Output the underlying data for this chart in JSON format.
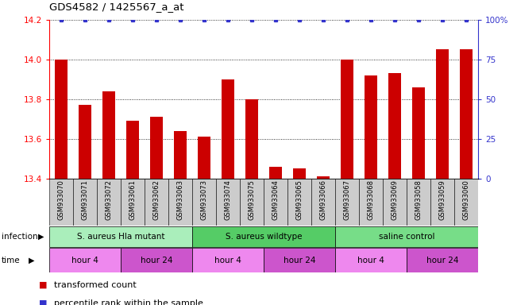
{
  "title": "GDS4582 / 1425567_a_at",
  "samples": [
    "GSM933070",
    "GSM933071",
    "GSM933072",
    "GSM933061",
    "GSM933062",
    "GSM933063",
    "GSM933073",
    "GSM933074",
    "GSM933075",
    "GSM933064",
    "GSM933065",
    "GSM933066",
    "GSM933067",
    "GSM933068",
    "GSM933069",
    "GSM933058",
    "GSM933059",
    "GSM933060"
  ],
  "bar_values": [
    14.0,
    13.77,
    13.84,
    13.69,
    13.71,
    13.64,
    13.61,
    13.9,
    13.8,
    13.46,
    13.45,
    13.41,
    14.0,
    13.92,
    13.93,
    13.86,
    14.05,
    14.05
  ],
  "percentile_values": [
    100,
    100,
    100,
    100,
    100,
    100,
    100,
    100,
    100,
    100,
    100,
    100,
    100,
    100,
    100,
    100,
    100,
    100
  ],
  "bar_color": "#cc0000",
  "percentile_color": "#3333cc",
  "ylim_left": [
    13.4,
    14.2
  ],
  "ylim_right": [
    0,
    100
  ],
  "yticks_left": [
    13.4,
    13.6,
    13.8,
    14.0,
    14.2
  ],
  "yticks_right": [
    0,
    25,
    50,
    75,
    100
  ],
  "infection_groups": [
    {
      "label": "S. aureus Hla mutant",
      "start": 0,
      "end": 6,
      "color": "#aaeebb"
    },
    {
      "label": "S. aureus wildtype",
      "start": 6,
      "end": 12,
      "color": "#55cc66"
    },
    {
      "label": "saline control",
      "start": 12,
      "end": 18,
      "color": "#77dd88"
    }
  ],
  "time_groups": [
    {
      "label": "hour 4",
      "start": 0,
      "end": 3,
      "color": "#ee88ee"
    },
    {
      "label": "hour 24",
      "start": 3,
      "end": 6,
      "color": "#cc55cc"
    },
    {
      "label": "hour 4",
      "start": 6,
      "end": 9,
      "color": "#ee88ee"
    },
    {
      "label": "hour 24",
      "start": 9,
      "end": 12,
      "color": "#cc55cc"
    },
    {
      "label": "hour 4",
      "start": 12,
      "end": 15,
      "color": "#ee88ee"
    },
    {
      "label": "hour 24",
      "start": 15,
      "end": 18,
      "color": "#cc55cc"
    }
  ],
  "infection_label": "infection",
  "time_label": "time",
  "legend_items": [
    {
      "color": "#cc0000",
      "label": "transformed count"
    },
    {
      "color": "#3333cc",
      "label": "percentile rank within the sample"
    }
  ],
  "fig_width": 6.51,
  "fig_height": 3.84,
  "dpi": 100
}
